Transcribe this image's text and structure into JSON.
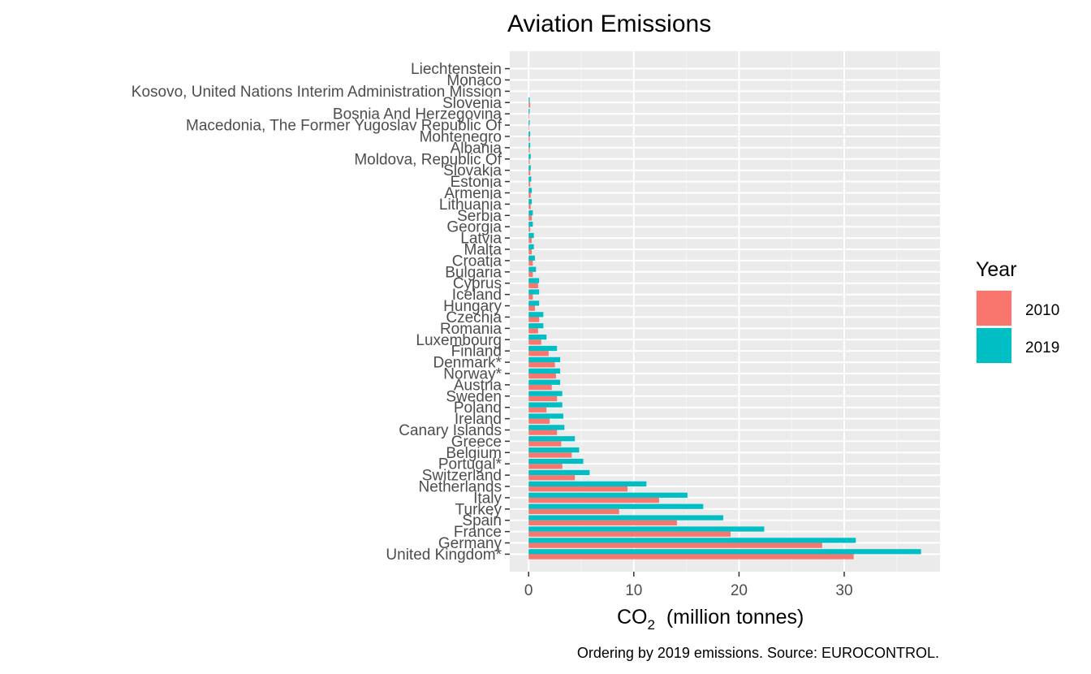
{
  "chart_data": {
    "type": "bar",
    "orientation": "horizontal",
    "title": "Aviation Emissions",
    "xlabel_main": "CO",
    "xlabel_sub": "2",
    "xlabel_rest": "  (million tonnes)",
    "caption": "Ordering by 2019 emissions. Source: EUROCONTROL.",
    "xlim": [
      0,
      38
    ],
    "xticks": [
      0,
      10,
      20,
      30
    ],
    "grid": true,
    "legend": {
      "title": "Year",
      "position": "right"
    },
    "categories": [
      "United Kingdom*",
      "Germany",
      "France",
      "Spain",
      "Turkey",
      "Italy",
      "Netherlands",
      "Switzerland",
      "Portugal*",
      "Belgium",
      "Greece",
      "Canary Islands",
      "Ireland",
      "Poland",
      "Sweden",
      "Austria",
      "Norway*",
      "Denmark*",
      "Finland",
      "Luxembourg",
      "Romania",
      "Czechia",
      "Hungary",
      "Iceland",
      "Cyprus",
      "Bulgaria",
      "Croatia",
      "Malta",
      "Latvia",
      "Georgia",
      "Serbia",
      "Lithuania",
      "Armenia",
      "Estonia",
      "Slovakia",
      "Moldova, Republic Of",
      "Albania",
      "Montenegro",
      "Macedonia, The Former Yugoslav Republic Of",
      "Bosnia And Herzegovina",
      "Slovenia",
      "Kosovo, United Nations Interim Administration Mission",
      "Monaco",
      "Liechtenstein"
    ],
    "series": [
      {
        "name": "2010",
        "color": "#F8766D",
        "values": [
          30.9,
          27.9,
          19.2,
          14.1,
          8.6,
          12.4,
          9.4,
          4.4,
          3.2,
          4.1,
          3.1,
          2.7,
          2.0,
          1.7,
          2.7,
          2.2,
          2.6,
          2.5,
          1.9,
          1.2,
          0.9,
          1.0,
          0.6,
          0.4,
          0.9,
          0.4,
          0.4,
          0.3,
          0.3,
          0.15,
          0.3,
          0.2,
          0.2,
          0.15,
          0.15,
          0.1,
          0.1,
          0.1,
          0.05,
          0.05,
          0.15,
          0.0,
          0.0,
          0.0
        ]
      },
      {
        "name": "2019",
        "color": "#00BFC4",
        "values": [
          37.3,
          31.1,
          22.4,
          18.5,
          16.6,
          15.1,
          11.2,
          5.8,
          5.2,
          4.8,
          4.4,
          3.4,
          3.3,
          3.2,
          3.2,
          3.0,
          3.0,
          3.0,
          2.7,
          1.7,
          1.4,
          1.4,
          1.0,
          1.0,
          1.0,
          0.7,
          0.6,
          0.5,
          0.5,
          0.4,
          0.4,
          0.3,
          0.3,
          0.25,
          0.2,
          0.2,
          0.15,
          0.15,
          0.1,
          0.1,
          0.1,
          0.0,
          0.0,
          0.0
        ]
      }
    ]
  }
}
